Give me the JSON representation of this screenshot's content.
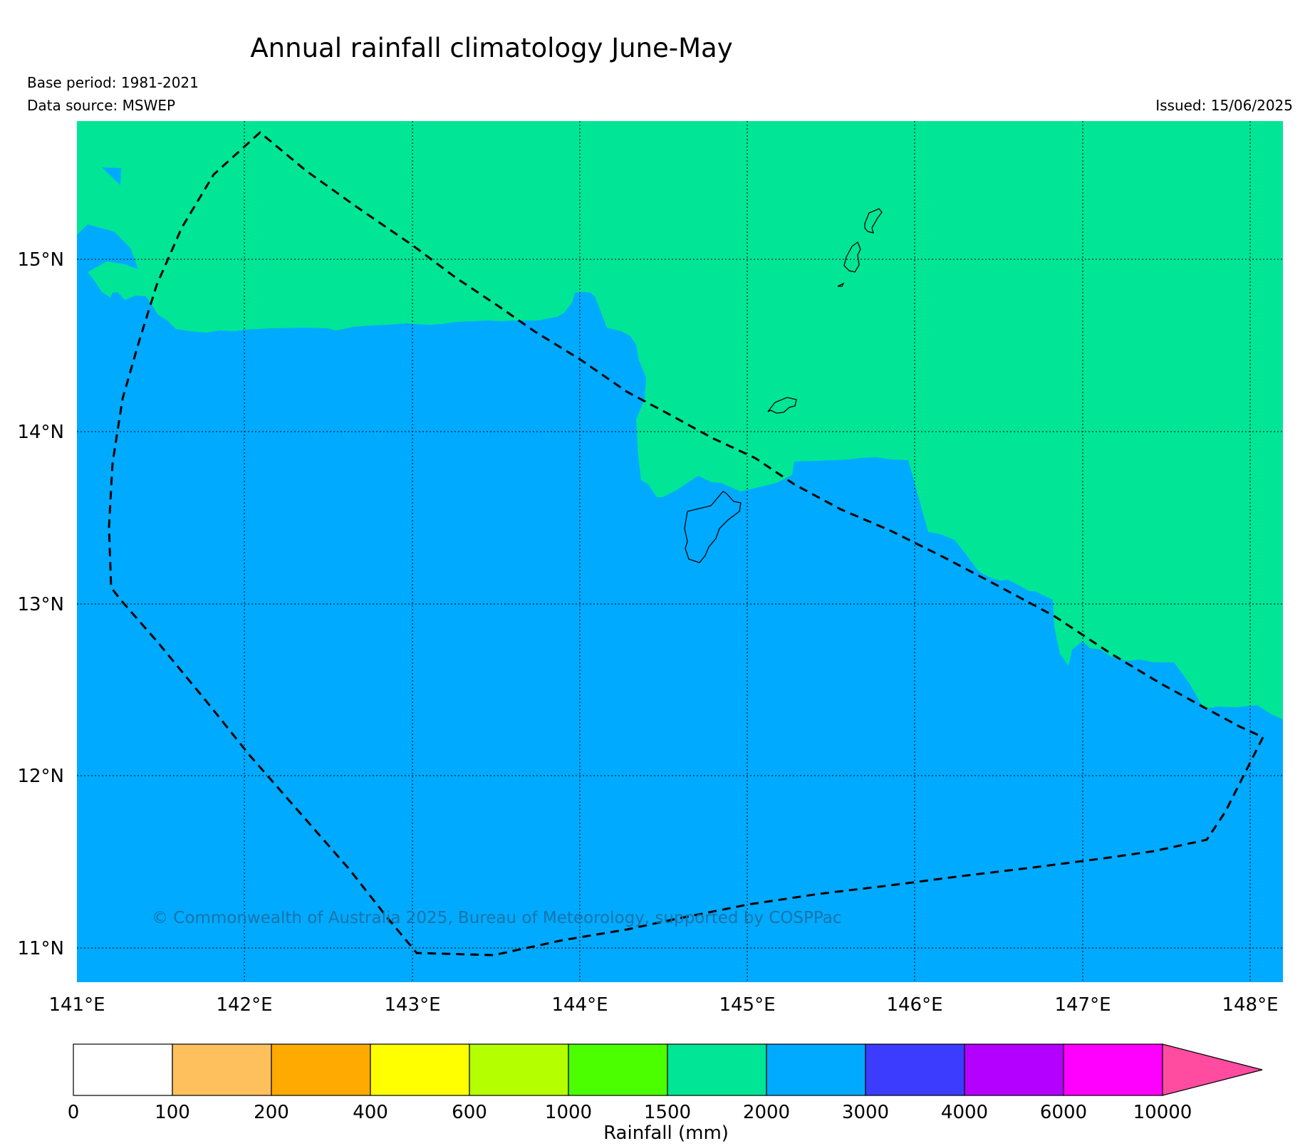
{
  "title": "Annual rainfall climatology June-May",
  "base_period": "Base period: 1981-2021",
  "data_source": "Data source: MSWEP",
  "issued": "Issued: 15/06/2025",
  "copyright": "© Commonwealth of Australia 2025, Bureau of Meteorology, supported by COSPPac",
  "x_ticks": [
    "141°E",
    "142°E",
    "143°E",
    "144°E",
    "145°E",
    "146°E",
    "147°E",
    "148°E"
  ],
  "y_ticks": [
    "15°N",
    "14°N",
    "13°N",
    "12°N",
    "11°N"
  ],
  "colorbar": {
    "label": "Rainfall (mm)",
    "tick_labels": [
      "0",
      "100",
      "200",
      "400",
      "600",
      "1000",
      "1500",
      "2000",
      "3000",
      "4000",
      "6000",
      "10000"
    ],
    "colors": [
      "#ffffff",
      "#fec05c",
      "#ffaa00",
      "#ffff00",
      "#b4ff00",
      "#4bff00",
      "#00e696",
      "#00aaff",
      "#3c3cff",
      "#b400ff",
      "#ff00ff"
    ],
    "extend_color": "#ff4ba0"
  },
  "map": {
    "lon_range": [
      141,
      148.2
    ],
    "lat_range": [
      10.8,
      15.8
    ],
    "class_colors": {
      "1500-2000": "#00e696",
      "2000-3000": "#00aaff"
    }
  }
}
